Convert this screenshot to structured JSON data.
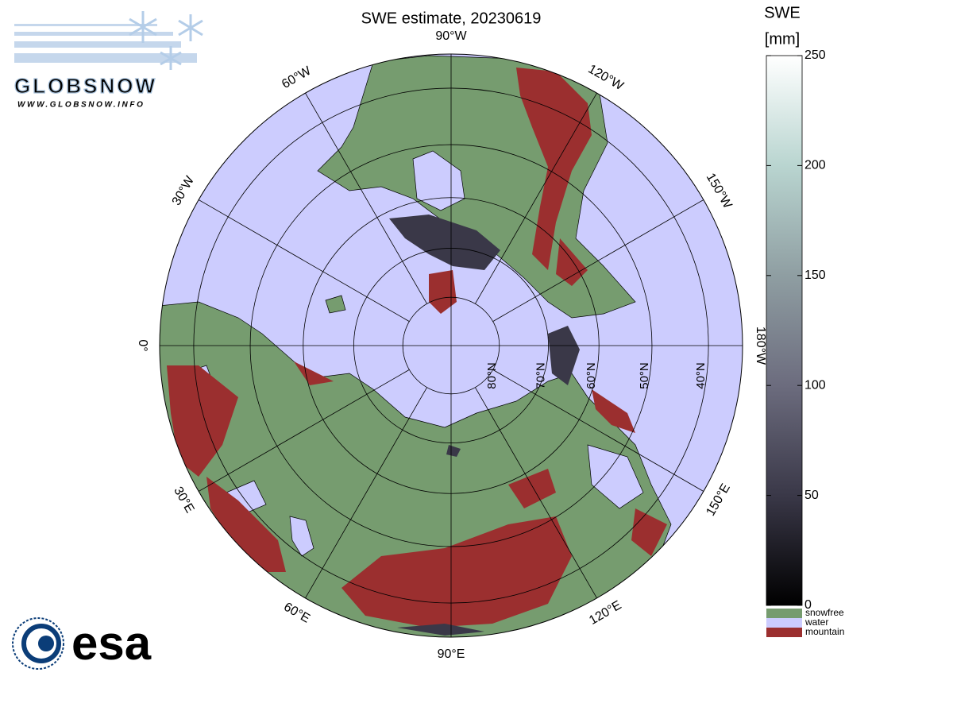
{
  "logos": {
    "globsnow_name": "GLOBSNOW",
    "globsnow_url": "WWW.GLOBSNOW.INFO",
    "esa": "esa"
  },
  "chart_data": {
    "type": "polar-map",
    "title": "SWE estimate, 20230619",
    "projection": "north-polar-stereographic",
    "parallels": [
      {
        "value": 80,
        "label": "80°N"
      },
      {
        "value": 70,
        "label": "70°N"
      },
      {
        "value": 60,
        "label": "60°N"
      },
      {
        "value": 50,
        "label": "50°N"
      },
      {
        "value": 40,
        "label": "40°N"
      }
    ],
    "meridians": [
      {
        "value": -90,
        "label": "90°W"
      },
      {
        "value": -120,
        "label": "120°W"
      },
      {
        "value": -150,
        "label": "150°W"
      },
      {
        "value": -180,
        "label": "180°W"
      },
      {
        "value": 150,
        "label": "150°E"
      },
      {
        "value": 120,
        "label": "120°E"
      },
      {
        "value": 90,
        "label": "90°E"
      },
      {
        "value": 60,
        "label": "60°E"
      },
      {
        "value": 30,
        "label": "30°E"
      },
      {
        "value": 0,
        "label": "0°"
      },
      {
        "value": -30,
        "label": "30°W"
      },
      {
        "value": -60,
        "label": "60°W"
      }
    ],
    "colorbar": {
      "label_lines": [
        "SWE",
        "[mm]"
      ],
      "lim": [
        0,
        250
      ],
      "ticks": [
        0,
        50,
        100,
        150,
        200,
        250
      ],
      "colors": [
        "#000000",
        "#3a3848",
        "#6c6c7e",
        "#8f9ea2",
        "#b9d5d0",
        "#ffffff"
      ],
      "categories": [
        {
          "name": "snowfree",
          "color": "#769c6f"
        },
        {
          "name": "water",
          "color": "#ccccfe"
        },
        {
          "name": "mountain",
          "color": "#9b2f2f"
        }
      ]
    }
  }
}
